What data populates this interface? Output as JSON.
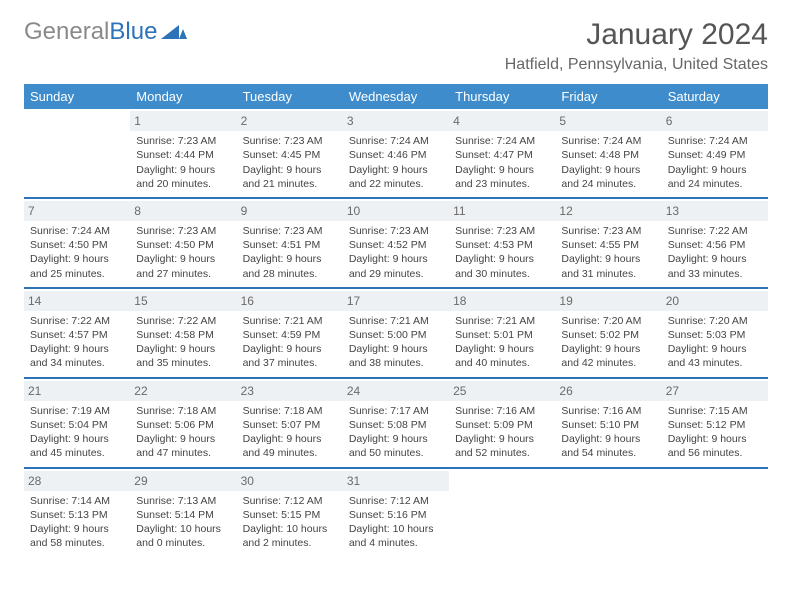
{
  "brand": {
    "part1": "General",
    "part2": "Blue"
  },
  "title": "January 2024",
  "location": "Hatfield, Pennsylvania, United States",
  "colors": {
    "header_bg": "#3e8ccc",
    "accent": "#2d73b8",
    "daynum_bg": "#eef1f3",
    "text": "#444444",
    "muted": "#6a6a6a"
  },
  "weekdays": [
    "Sunday",
    "Monday",
    "Tuesday",
    "Wednesday",
    "Thursday",
    "Friday",
    "Saturday"
  ],
  "weeks": [
    [
      null,
      {
        "n": "1",
        "sr": "7:23 AM",
        "ss": "4:44 PM",
        "dl": "9 hours and 20 minutes."
      },
      {
        "n": "2",
        "sr": "7:23 AM",
        "ss": "4:45 PM",
        "dl": "9 hours and 21 minutes."
      },
      {
        "n": "3",
        "sr": "7:24 AM",
        "ss": "4:46 PM",
        "dl": "9 hours and 22 minutes."
      },
      {
        "n": "4",
        "sr": "7:24 AM",
        "ss": "4:47 PM",
        "dl": "9 hours and 23 minutes."
      },
      {
        "n": "5",
        "sr": "7:24 AM",
        "ss": "4:48 PM",
        "dl": "9 hours and 24 minutes."
      },
      {
        "n": "6",
        "sr": "7:24 AM",
        "ss": "4:49 PM",
        "dl": "9 hours and 24 minutes."
      }
    ],
    [
      {
        "n": "7",
        "sr": "7:24 AM",
        "ss": "4:50 PM",
        "dl": "9 hours and 25 minutes."
      },
      {
        "n": "8",
        "sr": "7:23 AM",
        "ss": "4:50 PM",
        "dl": "9 hours and 27 minutes."
      },
      {
        "n": "9",
        "sr": "7:23 AM",
        "ss": "4:51 PM",
        "dl": "9 hours and 28 minutes."
      },
      {
        "n": "10",
        "sr": "7:23 AM",
        "ss": "4:52 PM",
        "dl": "9 hours and 29 minutes."
      },
      {
        "n": "11",
        "sr": "7:23 AM",
        "ss": "4:53 PM",
        "dl": "9 hours and 30 minutes."
      },
      {
        "n": "12",
        "sr": "7:23 AM",
        "ss": "4:55 PM",
        "dl": "9 hours and 31 minutes."
      },
      {
        "n": "13",
        "sr": "7:22 AM",
        "ss": "4:56 PM",
        "dl": "9 hours and 33 minutes."
      }
    ],
    [
      {
        "n": "14",
        "sr": "7:22 AM",
        "ss": "4:57 PM",
        "dl": "9 hours and 34 minutes."
      },
      {
        "n": "15",
        "sr": "7:22 AM",
        "ss": "4:58 PM",
        "dl": "9 hours and 35 minutes."
      },
      {
        "n": "16",
        "sr": "7:21 AM",
        "ss": "4:59 PM",
        "dl": "9 hours and 37 minutes."
      },
      {
        "n": "17",
        "sr": "7:21 AM",
        "ss": "5:00 PM",
        "dl": "9 hours and 38 minutes."
      },
      {
        "n": "18",
        "sr": "7:21 AM",
        "ss": "5:01 PM",
        "dl": "9 hours and 40 minutes."
      },
      {
        "n": "19",
        "sr": "7:20 AM",
        "ss": "5:02 PM",
        "dl": "9 hours and 42 minutes."
      },
      {
        "n": "20",
        "sr": "7:20 AM",
        "ss": "5:03 PM",
        "dl": "9 hours and 43 minutes."
      }
    ],
    [
      {
        "n": "21",
        "sr": "7:19 AM",
        "ss": "5:04 PM",
        "dl": "9 hours and 45 minutes."
      },
      {
        "n": "22",
        "sr": "7:18 AM",
        "ss": "5:06 PM",
        "dl": "9 hours and 47 minutes."
      },
      {
        "n": "23",
        "sr": "7:18 AM",
        "ss": "5:07 PM",
        "dl": "9 hours and 49 minutes."
      },
      {
        "n": "24",
        "sr": "7:17 AM",
        "ss": "5:08 PM",
        "dl": "9 hours and 50 minutes."
      },
      {
        "n": "25",
        "sr": "7:16 AM",
        "ss": "5:09 PM",
        "dl": "9 hours and 52 minutes."
      },
      {
        "n": "26",
        "sr": "7:16 AM",
        "ss": "5:10 PM",
        "dl": "9 hours and 54 minutes."
      },
      {
        "n": "27",
        "sr": "7:15 AM",
        "ss": "5:12 PM",
        "dl": "9 hours and 56 minutes."
      }
    ],
    [
      {
        "n": "28",
        "sr": "7:14 AM",
        "ss": "5:13 PM",
        "dl": "9 hours and 58 minutes."
      },
      {
        "n": "29",
        "sr": "7:13 AM",
        "ss": "5:14 PM",
        "dl": "10 hours and 0 minutes."
      },
      {
        "n": "30",
        "sr": "7:12 AM",
        "ss": "5:15 PM",
        "dl": "10 hours and 2 minutes."
      },
      {
        "n": "31",
        "sr": "7:12 AM",
        "ss": "5:16 PM",
        "dl": "10 hours and 4 minutes."
      },
      null,
      null,
      null
    ]
  ],
  "labels": {
    "sunrise": "Sunrise:",
    "sunset": "Sunset:",
    "daylight": "Daylight:"
  }
}
